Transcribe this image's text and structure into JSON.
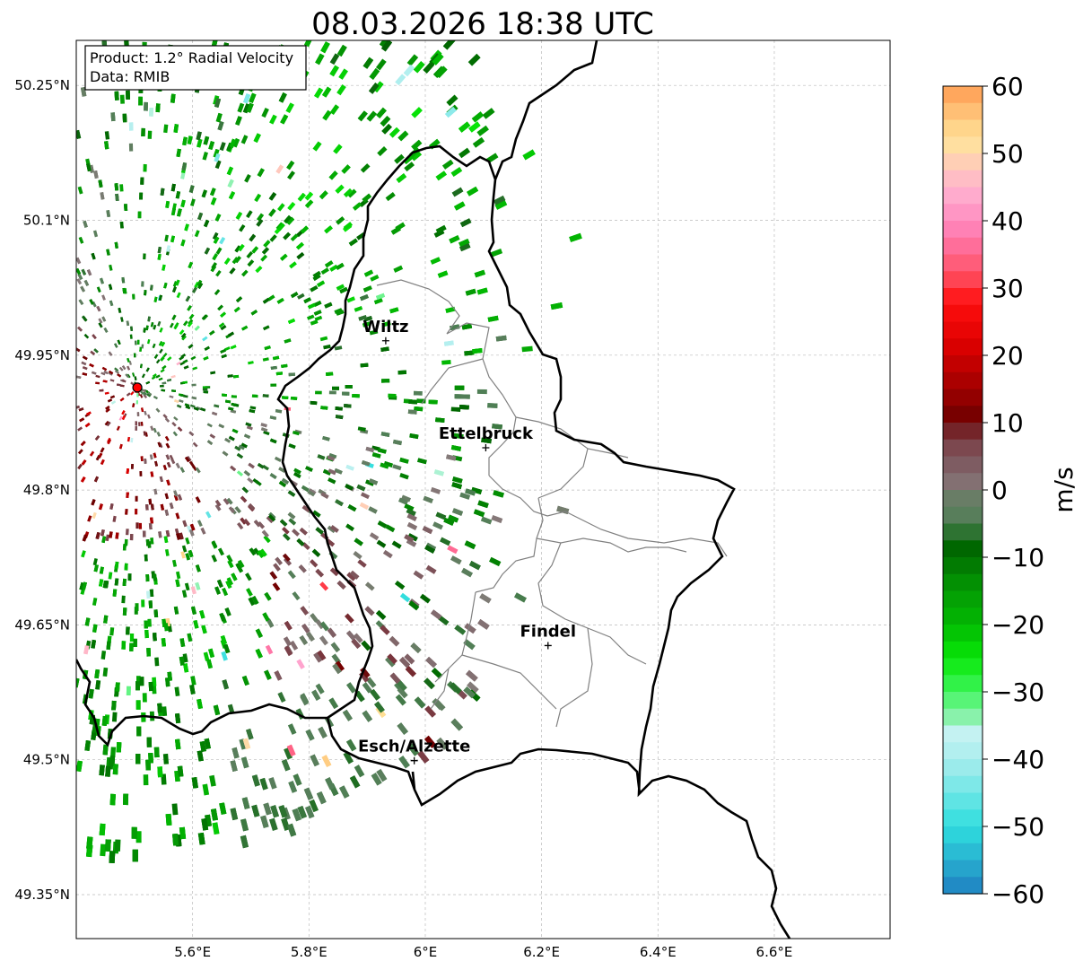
{
  "title": "08.03.2026 18:38 UTC",
  "info_box": {
    "line1": "Product: 1.2° Radial Velocity",
    "line2": "Data: RMIB"
  },
  "map": {
    "lon_range": [
      5.4,
      6.8
    ],
    "lat_range": [
      49.3,
      50.3
    ],
    "lon_ticks": [
      {
        "value": 5.6,
        "label": "5.6°E"
      },
      {
        "value": 5.8,
        "label": "5.8°E"
      },
      {
        "value": 6.0,
        "label": "6°E"
      },
      {
        "value": 6.2,
        "label": "6.2°E"
      },
      {
        "value": 6.4,
        "label": "6.4°E"
      },
      {
        "value": 6.6,
        "label": "6.6°E"
      }
    ],
    "lat_ticks": [
      {
        "value": 50.25,
        "label": "50.25°N"
      },
      {
        "value": 50.1,
        "label": "50.1°N"
      },
      {
        "value": 49.95,
        "label": "49.95°N"
      },
      {
        "value": 49.8,
        "label": "49.8°N"
      },
      {
        "value": 49.65,
        "label": "49.65°N"
      },
      {
        "value": 49.5,
        "label": "49.5°N"
      },
      {
        "value": 49.35,
        "label": "49.35°N"
      }
    ],
    "radar_site": {
      "lon": 5.505,
      "lat": 49.914
    },
    "cities": [
      {
        "name": "Wiltz",
        "lon": 5.932,
        "lat": 49.966
      },
      {
        "name": "Ettelbruck",
        "lon": 6.104,
        "lat": 49.847
      },
      {
        "name": "Findel",
        "lon": 6.211,
        "lat": 49.627
      },
      {
        "name": "Esch/Alzette",
        "lon": 5.981,
        "lat": 49.499
      }
    ]
  },
  "colorbar": {
    "label": "m/s",
    "min": -60,
    "max": 60,
    "ticks": [
      "60",
      "50",
      "40",
      "30",
      "20",
      "10",
      "0",
      "−10",
      "−20",
      "−30",
      "−40",
      "−50",
      "−60"
    ]
  }
}
